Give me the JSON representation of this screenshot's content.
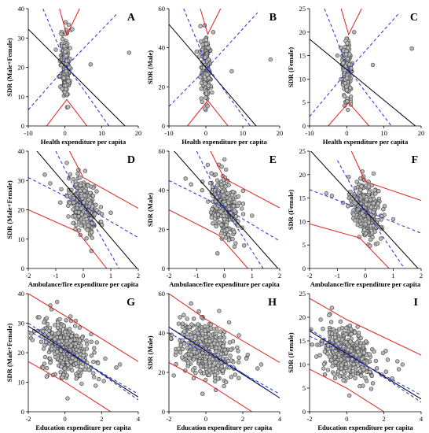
{
  "chart_data": [
    {
      "id": "A",
      "type": "scatter",
      "panel_label": "A",
      "xlabel": "Health expenditure per capita",
      "ylabel": "SDR (Male+Female)",
      "xlim": [
        -10,
        20
      ],
      "ylim": [
        0,
        40
      ],
      "xticks": [
        -10,
        0,
        10,
        20
      ],
      "yticks": [
        0,
        10,
        20,
        30,
        40
      ],
      "fit": {
        "slope": -1.25,
        "intercept": 20.5
      },
      "ci_inner": {
        "apex_x": 0.5,
        "apex_y": 20.5,
        "left_lo_y": 5.5,
        "left_hi_y": 40,
        "right_lo_y": 8,
        "right_hi_y": 38
      },
      "pi_outer": {
        "top_apex": [
          0.5,
          31
        ],
        "bottom_apex": [
          0.5,
          9
        ],
        "top_left_end": [
          -1.5,
          40
        ],
        "top_right_end": [
          4,
          40
        ],
        "bottom_left_end": [
          -5,
          0
        ],
        "bottom_right_end": [
          6,
          0
        ]
      },
      "points": {
        "n": 180,
        "cx": 0,
        "sx": 0.6,
        "cy": 20.5,
        "sy": 5.5,
        "outliers": [
          [
            17.5,
            25
          ],
          [
            7,
            21
          ],
          [
            -2.5,
            26
          ],
          [
            2,
            33
          ],
          [
            -1.5,
            17
          ]
        ]
      }
    },
    {
      "id": "B",
      "type": "scatter",
      "panel_label": "B",
      "xlabel": "Health expenditure per capita",
      "ylabel": "SDR (Male)",
      "xlim": [
        -10,
        20
      ],
      "ylim": [
        0,
        60
      ],
      "xticks": [
        -10,
        0,
        10,
        20
      ],
      "yticks": [
        0,
        20,
        40,
        60
      ],
      "fit": {
        "slope": -2.2,
        "intercept": 30
      },
      "ci_inner": {
        "apex_x": 0.5,
        "apex_y": 30,
        "left_lo_y": 10,
        "left_hi_y": 60,
        "right_lo_y": 12,
        "right_hi_y": 58
      },
      "pi_outer": {
        "top_apex": [
          0.5,
          47
        ],
        "bottom_apex": [
          0.5,
          13
        ],
        "top_left_end": [
          -1.5,
          60
        ],
        "top_right_end": [
          4,
          60
        ],
        "bottom_left_end": [
          -5,
          0
        ],
        "bottom_right_end": [
          6,
          0
        ]
      },
      "points": {
        "n": 180,
        "cx": 0,
        "sx": 0.6,
        "cy": 30,
        "sy": 8,
        "outliers": [
          [
            17.5,
            34
          ],
          [
            7,
            28
          ],
          [
            -2.5,
            38
          ],
          [
            2,
            48
          ],
          [
            -1.5,
            25
          ]
        ]
      }
    },
    {
      "id": "C",
      "type": "scatter",
      "panel_label": "C",
      "xlabel": "Health expenditure per capita",
      "ylabel": "SDR (Female)",
      "xlim": [
        -10,
        20
      ],
      "ylim": [
        0,
        25
      ],
      "xticks": [
        -10,
        0,
        10,
        20
      ],
      "yticks": [
        0,
        5,
        10,
        15,
        20,
        25
      ],
      "fit": {
        "slope": -0.65,
        "intercept": 12
      },
      "ci_inner": {
        "apex_x": 0.5,
        "apex_y": 12,
        "left_lo_y": 2,
        "left_hi_y": 25,
        "right_lo_y": 4,
        "right_hi_y": 24
      },
      "pi_outer": {
        "top_apex": [
          0.5,
          19.5
        ],
        "bottom_apex": [
          0.5,
          5
        ],
        "top_left_end": [
          -1.5,
          25
        ],
        "top_right_end": [
          4,
          25
        ],
        "bottom_left_end": [
          -5,
          0
        ],
        "bottom_right_end": [
          6,
          0
        ]
      },
      "points": {
        "n": 180,
        "cx": 0,
        "sx": 0.6,
        "cy": 12,
        "sy": 3.3,
        "outliers": [
          [
            17.5,
            16.5
          ],
          [
            7,
            13
          ],
          [
            -2.5,
            15
          ],
          [
            2,
            20
          ],
          [
            -1.5,
            10
          ]
        ]
      }
    },
    {
      "id": "D",
      "type": "scatter",
      "panel_label": "D",
      "xlabel": "Ambulance/fire expenditure per capita",
      "ylabel": "SDR (Male+Female)",
      "xlim": [
        -2,
        2
      ],
      "ylim": [
        0,
        40
      ],
      "xticks": [
        -2,
        -1,
        0,
        1,
        2
      ],
      "yticks": [
        0,
        10,
        20,
        30,
        40
      ],
      "fit": {
        "slope": -11,
        "intercept": 21.5
      },
      "ci_lines": [
        [
          [
            -2,
            31
          ],
          [
            0,
            21.5
          ],
          [
            2,
            10.5
          ]
        ],
        [
          [
            -1,
            40
          ],
          [
            0,
            21.5
          ],
          [
            1.3,
            0
          ]
        ]
      ],
      "pi_lines": [
        [
          [
            -2,
            20
          ],
          [
            -0.2,
            12.5
          ],
          [
            0.85,
            0
          ]
        ],
        [
          [
            -0.5,
            40
          ],
          [
            0,
            31
          ],
          [
            2,
            20.5
          ]
        ]
      ],
      "points": {
        "n": 320,
        "cx": 0,
        "sx": 0.25,
        "cy": 21.5,
        "sy": 4.5,
        "outliers": [
          [
            -1.4,
            32
          ],
          [
            -0.8,
            27
          ],
          [
            -0.6,
            36
          ],
          [
            1,
            19
          ],
          [
            -1.2,
            29
          ]
        ]
      }
    },
    {
      "id": "E",
      "type": "scatter",
      "panel_label": "E",
      "xlabel": "Ambulance/fire expenditure per capita",
      "ylabel": "SDR (Male)",
      "xlim": [
        -2,
        2
      ],
      "ylim": [
        0,
        60
      ],
      "xticks": [
        -2,
        -1,
        0,
        1,
        2
      ],
      "yticks": [
        0,
        20,
        40,
        60
      ],
      "fit": {
        "slope": -16,
        "intercept": 31
      },
      "ci_lines": [
        [
          [
            -2,
            45
          ],
          [
            0,
            31
          ],
          [
            2,
            14
          ]
        ],
        [
          [
            -1,
            60
          ],
          [
            0,
            31
          ],
          [
            1.4,
            0
          ]
        ]
      ],
      "pi_lines": [
        [
          [
            -2,
            30
          ],
          [
            -0.2,
            17
          ],
          [
            0.85,
            0
          ]
        ],
        [
          [
            -0.5,
            60
          ],
          [
            0,
            46
          ],
          [
            2,
            31
          ]
        ]
      ],
      "points": {
        "n": 320,
        "cx": 0,
        "sx": 0.25,
        "cy": 31,
        "sy": 7,
        "outliers": [
          [
            -1.4,
            46
          ],
          [
            -0.8,
            40
          ],
          [
            -0.6,
            53
          ],
          [
            1,
            27
          ],
          [
            -1.2,
            43
          ]
        ]
      }
    },
    {
      "id": "F",
      "type": "scatter",
      "panel_label": "F",
      "xlabel": "Ambulance/fire expenditure per capita",
      "ylabel": "SDR (Female)",
      "xlim": [
        -2,
        2
      ],
      "ylim": [
        0,
        25
      ],
      "xticks": [
        -2,
        -1,
        0,
        1,
        2
      ],
      "yticks": [
        0,
        5,
        10,
        15,
        20,
        25
      ],
      "fit": {
        "slope": -6.5,
        "intercept": 12.3
      },
      "ci_lines": [
        [
          [
            -2,
            16.8
          ],
          [
            0,
            12.3
          ],
          [
            2,
            7.5
          ]
        ],
        [
          [
            -1,
            23
          ],
          [
            0,
            12.3
          ],
          [
            1.4,
            0
          ]
        ]
      ],
      "pi_lines": [
        [
          [
            -2,
            9.5
          ],
          [
            -0.2,
            6.5
          ],
          [
            0.85,
            0
          ]
        ],
        [
          [
            -0.5,
            25
          ],
          [
            0,
            18.5
          ],
          [
            2,
            14.5
          ]
        ]
      ],
      "points": {
        "n": 320,
        "cx": 0,
        "sx": 0.25,
        "cy": 12.3,
        "sy": 2.7,
        "outliers": [
          [
            -1.4,
            16
          ],
          [
            -0.8,
            14
          ],
          [
            -0.6,
            19.5
          ],
          [
            1,
            10.5
          ],
          [
            -1.2,
            15.5
          ]
        ]
      }
    },
    {
      "id": "G",
      "type": "scatter",
      "panel_label": "G",
      "xlabel": "Education expenditure per capita",
      "ylabel": "SDR (Male+Female)",
      "xlim": [
        -2,
        4
      ],
      "ylim": [
        0,
        40
      ],
      "xticks": [
        -2,
        0,
        2,
        4
      ],
      "yticks": [
        0,
        10,
        20,
        30,
        40
      ],
      "fit": {
        "slope": -4,
        "intercept": 21
      },
      "ci_lines": [
        [
          [
            -2,
            30
          ],
          [
            0,
            21.5
          ],
          [
            4,
            4
          ]
        ],
        [
          [
            -2,
            27.5
          ],
          [
            0,
            20.5
          ],
          [
            4,
            6
          ]
        ]
      ],
      "pi_lines": [
        [
          [
            -2,
            40
          ],
          [
            0,
            32.5
          ],
          [
            4,
            17
          ]
        ],
        [
          [
            -2,
            17
          ],
          [
            0,
            10
          ],
          [
            2.5,
            0
          ]
        ]
      ],
      "points": {
        "n": 420,
        "cx": 0,
        "sx": 0.7,
        "cy": 21,
        "sy": 4.5,
        "outliers": [
          [
            2.8,
            15
          ],
          [
            3,
            16
          ],
          [
            2.2,
            18
          ],
          [
            -1.4,
            32
          ],
          [
            -0.8,
            36
          ]
        ]
      }
    },
    {
      "id": "H",
      "type": "scatter",
      "panel_label": "H",
      "xlabel": "Education expenditure per capita",
      "ylabel": "SDR (Male)",
      "xlim": [
        -2,
        4
      ],
      "ylim": [
        0,
        60
      ],
      "xticks": [
        -2,
        0,
        2,
        4
      ],
      "yticks": [
        0,
        20,
        40,
        60
      ],
      "fit": {
        "slope": -6,
        "intercept": 31
      },
      "ci_lines": [
        [
          [
            -2,
            43
          ],
          [
            0,
            32
          ],
          [
            4,
            7
          ]
        ],
        [
          [
            -2,
            40
          ],
          [
            0,
            30
          ],
          [
            4,
            9
          ]
        ]
      ],
      "pi_lines": [
        [
          [
            -2,
            60
          ],
          [
            0,
            47
          ],
          [
            4,
            25
          ]
        ],
        [
          [
            -2,
            25
          ],
          [
            0,
            15
          ],
          [
            2.5,
            0
          ]
        ]
      ],
      "points": {
        "n": 420,
        "cx": 0,
        "sx": 0.7,
        "cy": 31,
        "sy": 7,
        "outliers": [
          [
            2.8,
            22
          ],
          [
            3,
            24
          ],
          [
            2.2,
            27
          ],
          [
            -1.4,
            48
          ],
          [
            -0.8,
            55
          ]
        ]
      }
    },
    {
      "id": "I",
      "type": "scatter",
      "panel_label": "I",
      "xlabel": "Education expenditure per capita",
      "ylabel": "SDR (Female)",
      "xlim": [
        -2,
        4
      ],
      "ylim": [
        0,
        25
      ],
      "xticks": [
        -2,
        0,
        2,
        4
      ],
      "yticks": [
        0,
        5,
        10,
        15,
        20,
        25
      ],
      "fit": {
        "slope": -2.4,
        "intercept": 12.3
      },
      "ci_lines": [
        [
          [
            -2,
            17.5
          ],
          [
            0,
            12.6
          ],
          [
            4,
            2
          ]
        ],
        [
          [
            -2,
            16
          ],
          [
            0,
            12
          ],
          [
            4,
            3.5
          ]
        ]
      ],
      "pi_lines": [
        [
          [
            -2,
            24
          ],
          [
            0,
            19.5
          ],
          [
            4,
            12
          ]
        ],
        [
          [
            -2,
            9
          ],
          [
            0,
            5
          ],
          [
            2,
            0
          ]
        ]
      ],
      "points": {
        "n": 420,
        "cx": 0,
        "sx": 0.7,
        "cy": 12.3,
        "sy": 2.7,
        "outliers": [
          [
            2.8,
            9
          ],
          [
            3,
            10
          ],
          [
            2.2,
            11
          ],
          [
            -1.4,
            19.5
          ],
          [
            -0.8,
            22
          ]
        ]
      }
    }
  ]
}
